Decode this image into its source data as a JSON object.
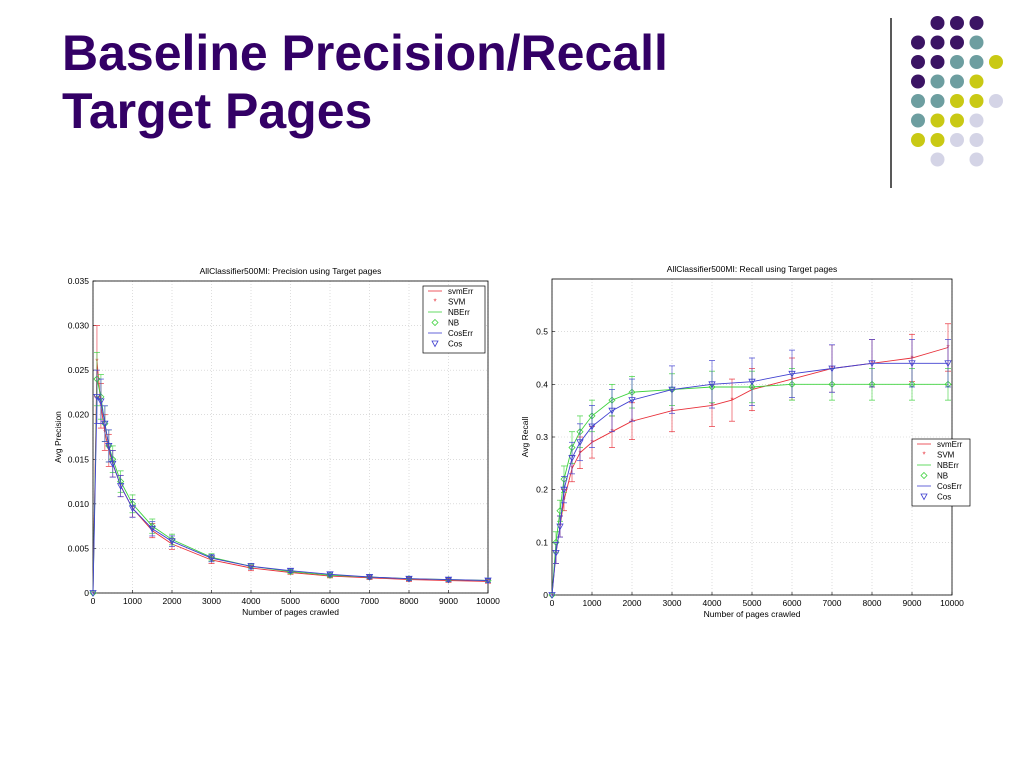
{
  "slide": {
    "title_line1": "Baseline Precision/Recall",
    "title_line2": "Target Pages",
    "title_color": "#330066",
    "decor_colors": {
      "purple": "#3b1464",
      "teal": "#6d9ea0",
      "yellow": "#c9c914",
      "lavender": "#d4d4e6"
    }
  },
  "chart_data": [
    {
      "type": "line",
      "title": "AllClassifier500MI: Precision using Target pages",
      "xlabel": "Number of pages crawled",
      "ylabel": "Avg Precision",
      "xlim": [
        0,
        10000
      ],
      "ylim": [
        0,
        0.035
      ],
      "xticks": [
        0,
        1000,
        2000,
        3000,
        4000,
        5000,
        6000,
        7000,
        8000,
        9000,
        10000
      ],
      "yticks": [
        0,
        0.005,
        0.01,
        0.015,
        0.02,
        0.025,
        0.03,
        0.035
      ],
      "grid": true,
      "legend_position": "top-right",
      "legend": [
        "svmErr",
        "SVM",
        "NBErr",
        "NB",
        "CosErr",
        "Cos"
      ],
      "series": [
        {
          "name": "SVM",
          "color": "#e8303a",
          "marker": "star",
          "x": [
            0,
            100,
            200,
            300,
            400,
            500,
            700,
            1000,
            1500,
            2000,
            3000,
            4000,
            5000,
            6000,
            7000,
            8000,
            9000,
            10000
          ],
          "y": [
            0,
            0.026,
            0.021,
            0.018,
            0.016,
            0.0145,
            0.012,
            0.0095,
            0.007,
            0.0055,
            0.0037,
            0.0028,
            0.0023,
            0.0019,
            0.0017,
            0.0015,
            0.0014,
            0.0013
          ],
          "err": [
            0,
            0.004,
            0.0025,
            0.002,
            0.0018,
            0.0015,
            0.0012,
            0.001,
            0.0008,
            0.0006,
            0.0004,
            0.0003,
            0.0002,
            0.0002,
            0.0002,
            0.0002,
            0.0002,
            0.0002
          ]
        },
        {
          "name": "NB",
          "color": "#3ed23e",
          "marker": "diamond",
          "x": [
            0,
            100,
            200,
            300,
            400,
            500,
            700,
            1000,
            1500,
            2000,
            3000,
            4000,
            5000,
            6000,
            7000,
            8000,
            9000,
            10000
          ],
          "y": [
            0,
            0.024,
            0.022,
            0.019,
            0.0165,
            0.015,
            0.0125,
            0.01,
            0.0075,
            0.006,
            0.004,
            0.003,
            0.0024,
            0.002,
            0.0018,
            0.0016,
            0.0015,
            0.0014
          ],
          "err": [
            0,
            0.003,
            0.0025,
            0.002,
            0.0018,
            0.0015,
            0.0012,
            0.001,
            0.0008,
            0.0006,
            0.0004,
            0.0003,
            0.0002,
            0.0002,
            0.0002,
            0.0002,
            0.0002,
            0.0002
          ]
        },
        {
          "name": "Cos",
          "color": "#4040d0",
          "marker": "triangle-down",
          "x": [
            0,
            100,
            200,
            300,
            400,
            500,
            700,
            1000,
            1500,
            2000,
            3000,
            4000,
            5000,
            6000,
            7000,
            8000,
            9000,
            10000
          ],
          "y": [
            0,
            0.022,
            0.0215,
            0.019,
            0.0165,
            0.0145,
            0.012,
            0.0095,
            0.0072,
            0.0058,
            0.0039,
            0.003,
            0.0025,
            0.0021,
            0.0018,
            0.0016,
            0.0015,
            0.0014
          ],
          "err": [
            0,
            0.003,
            0.0025,
            0.002,
            0.0018,
            0.0015,
            0.0012,
            0.001,
            0.0008,
            0.0006,
            0.0004,
            0.0003,
            0.0002,
            0.0002,
            0.0002,
            0.0002,
            0.0002,
            0.0002
          ]
        }
      ]
    },
    {
      "type": "line",
      "title": "AllClassifier500MI: Recall using Target pages",
      "xlabel": "Number of pages crawled",
      "ylabel": "Avg Recall",
      "xlim": [
        0,
        10000
      ],
      "ylim": [
        0,
        0.6
      ],
      "xticks": [
        0,
        1000,
        2000,
        3000,
        4000,
        5000,
        6000,
        7000,
        8000,
        9000,
        10000
      ],
      "yticks": [
        0,
        0.1,
        0.2,
        0.3,
        0.4,
        0.5
      ],
      "grid": true,
      "legend_position": "center-right",
      "legend": [
        "svmErr",
        "SVM",
        "NBErr",
        "NB",
        "CosErr",
        "Cos"
      ],
      "series": [
        {
          "name": "SVM",
          "color": "#e8303a",
          "marker": "star",
          "x": [
            0,
            100,
            200,
            300,
            500,
            700,
            1000,
            1500,
            2000,
            3000,
            4000,
            4500,
            5000,
            6000,
            7000,
            8000,
            9000,
            9900
          ],
          "y": [
            0,
            0.08,
            0.13,
            0.18,
            0.24,
            0.27,
            0.29,
            0.31,
            0.33,
            0.35,
            0.36,
            0.37,
            0.39,
            0.41,
            0.43,
            0.44,
            0.45,
            0.47
          ],
          "err": [
            0,
            0.02,
            0.02,
            0.02,
            0.025,
            0.03,
            0.03,
            0.03,
            0.035,
            0.04,
            0.04,
            0.04,
            0.04,
            0.04,
            0.045,
            0.045,
            0.045,
            0.045
          ]
        },
        {
          "name": "NB",
          "color": "#3ed23e",
          "marker": "diamond",
          "x": [
            0,
            100,
            200,
            300,
            500,
            700,
            1000,
            1500,
            2000,
            3000,
            4000,
            5000,
            6000,
            7000,
            8000,
            9000,
            9900
          ],
          "y": [
            0,
            0.1,
            0.16,
            0.22,
            0.28,
            0.31,
            0.34,
            0.37,
            0.385,
            0.39,
            0.395,
            0.395,
            0.4,
            0.4,
            0.4,
            0.4,
            0.4
          ],
          "err": [
            0,
            0.02,
            0.02,
            0.025,
            0.03,
            0.03,
            0.03,
            0.03,
            0.03,
            0.03,
            0.03,
            0.03,
            0.03,
            0.03,
            0.03,
            0.03,
            0.03
          ]
        },
        {
          "name": "Cos",
          "color": "#4040d0",
          "marker": "triangle-down",
          "x": [
            0,
            100,
            200,
            300,
            500,
            700,
            1000,
            1500,
            2000,
            3000,
            4000,
            5000,
            6000,
            7000,
            8000,
            9000,
            9900
          ],
          "y": [
            0,
            0.08,
            0.13,
            0.2,
            0.26,
            0.29,
            0.32,
            0.35,
            0.37,
            0.39,
            0.4,
            0.405,
            0.42,
            0.43,
            0.44,
            0.44,
            0.44
          ],
          "err": [
            0,
            0.02,
            0.02,
            0.025,
            0.03,
            0.035,
            0.04,
            0.04,
            0.04,
            0.045,
            0.045,
            0.045,
            0.045,
            0.045,
            0.045,
            0.045,
            0.045
          ]
        }
      ]
    }
  ]
}
